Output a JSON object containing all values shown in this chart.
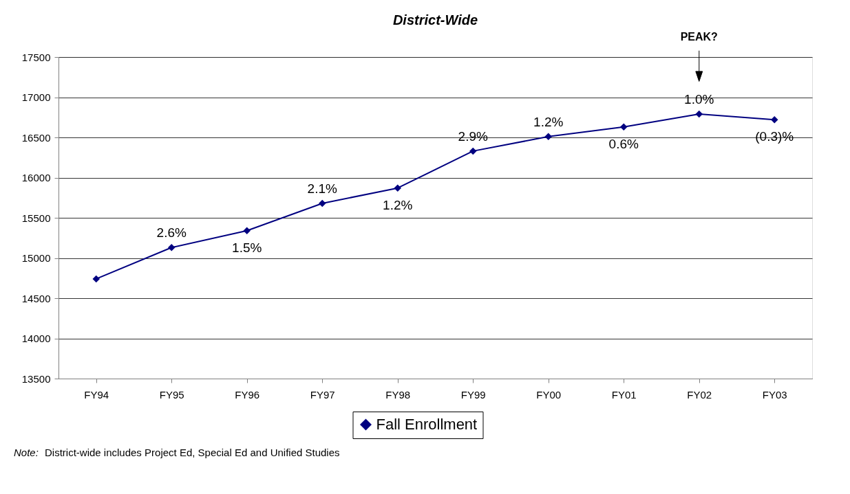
{
  "chart_data": {
    "type": "line",
    "title": "District-Wide",
    "categories": [
      "FY94",
      "FY95",
      "FY96",
      "FY97",
      "FY98",
      "FY99",
      "FY00",
      "FY01",
      "FY02",
      "FY03"
    ],
    "series": [
      {
        "name": "Fall Enrollment",
        "color": "#000080",
        "values": [
          14740,
          15130,
          15340,
          15680,
          15870,
          16330,
          16510,
          16630,
          16790,
          16720
        ]
      }
    ],
    "ylim": [
      13500,
      17500
    ],
    "yticks": [
      13500,
      14000,
      14500,
      15000,
      15500,
      16000,
      16500,
      17000,
      17500
    ],
    "grid": "y",
    "legend": "bottom",
    "marker": "diamond",
    "line_style": "solid",
    "annotations": [
      {
        "text": "2.6%",
        "x": "FY95",
        "y": 15130
      },
      {
        "text": "1.5%",
        "x": "FY96",
        "y": 15340
      },
      {
        "text": "2.1%",
        "x": "FY97",
        "y": 15680
      },
      {
        "text": "1.2%",
        "x": "FY98",
        "y": 15870
      },
      {
        "text": "2.9%",
        "x": "FY99",
        "y": 16330
      },
      {
        "text": "1.2%",
        "x": "FY00",
        "y": 16510
      },
      {
        "text": "0.6%",
        "x": "FY01",
        "y": 16630
      },
      {
        "text": "1.0%",
        "x": "FY02",
        "y": 16790
      },
      {
        "text": "(0.3)%",
        "x": "FY03",
        "y": 16720
      },
      "PEAK?",
      "Note:   District-wide includes Project Ed, Special Ed and Unified Studies"
    ]
  }
}
